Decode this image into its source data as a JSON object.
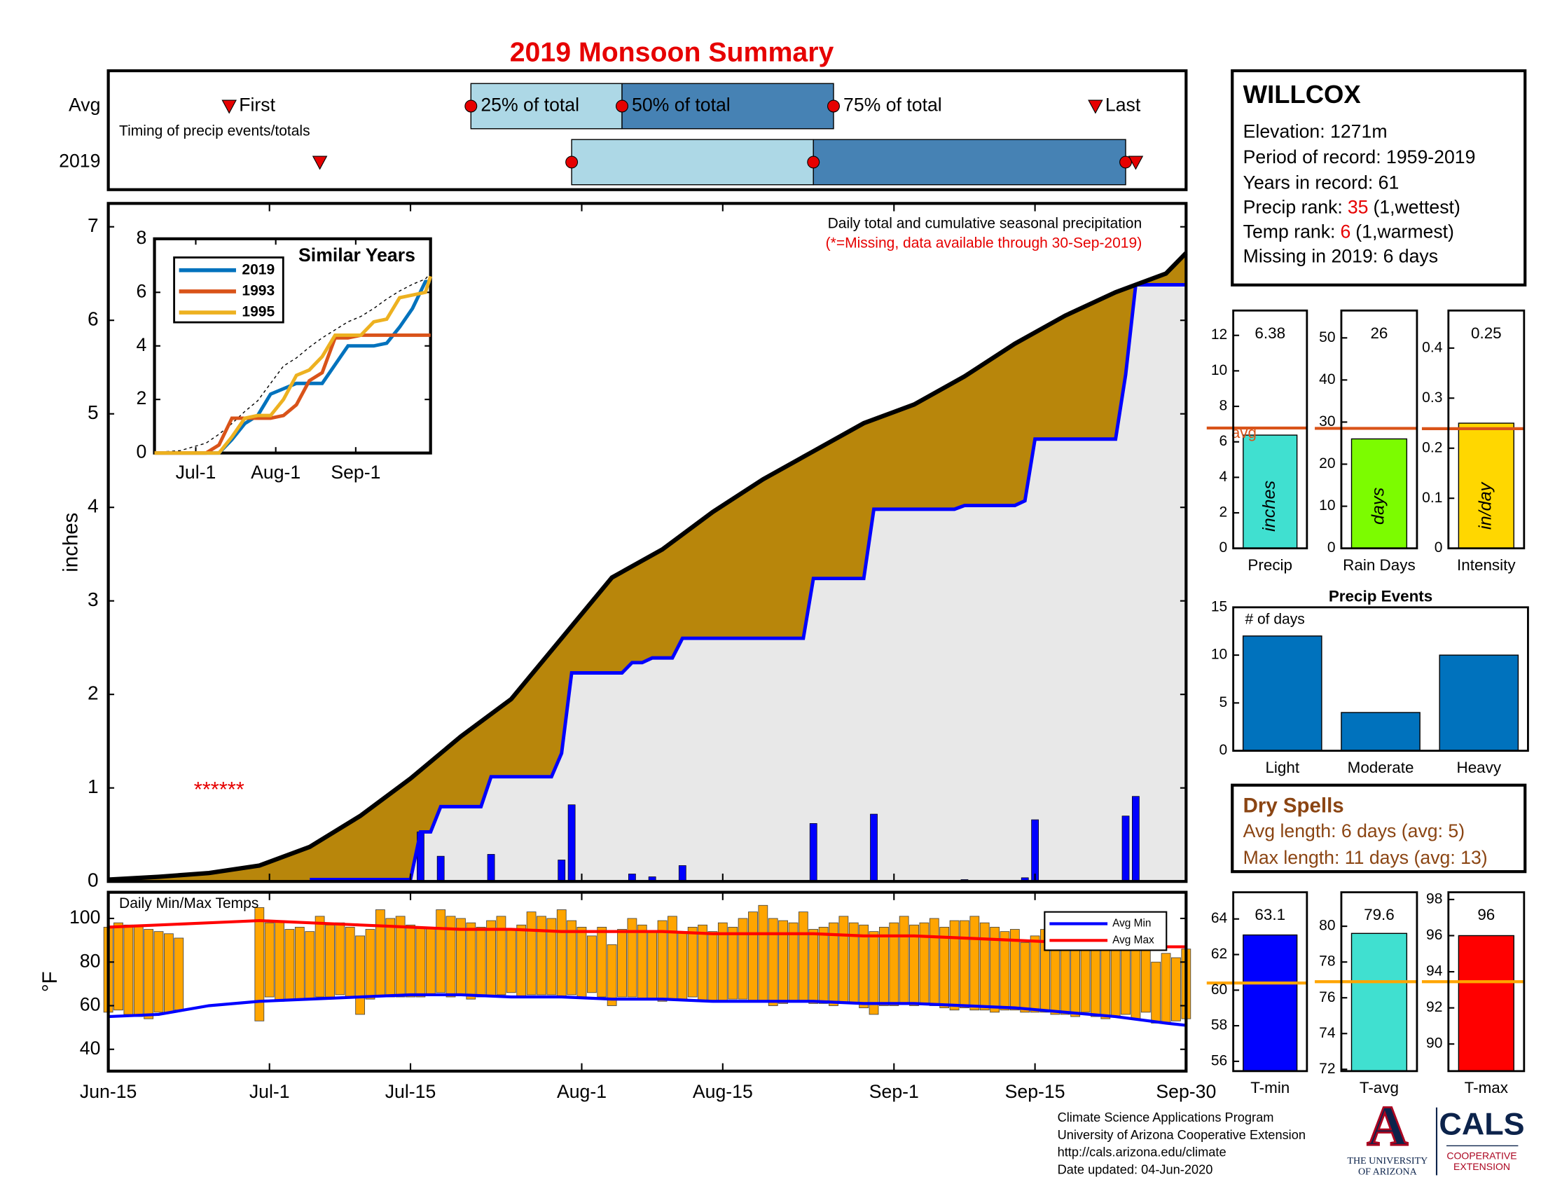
{
  "chart_data": [
    {
      "type": "timeline",
      "title": "2019 Monsoon Summary",
      "note": "Timing of precip events/totals",
      "marker_labels": [
        "First",
        "25% of total",
        "50% of total",
        "75% of total",
        "Last"
      ],
      "xlim": [
        0,
        107
      ],
      "box_colors": [
        "#add8e6",
        "#4682b4"
      ],
      "marker_color": "#e60000",
      "series": [
        {
          "name": "Avg",
          "values": [
            12,
            36,
            51,
            72,
            98
          ]
        },
        {
          "name": "2019",
          "values": [
            21,
            46,
            70,
            101,
            102
          ]
        }
      ]
    },
    {
      "type": "cumulative",
      "annotation": "Daily total and cumulative seasonal precipitation",
      "note": "(*=Missing, data available through 30-Sep-2019)",
      "missing_label": "******",
      "ylabel": "inches",
      "xlim": [
        0,
        107
      ],
      "ylim": [
        0,
        7.25
      ],
      "yticks": [
        0,
        1,
        2,
        3,
        4,
        5,
        6,
        7
      ],
      "average": {
        "color": "#000000",
        "fill": "#b8860b",
        "x": [
          0,
          5,
          10,
          15,
          20,
          25,
          30,
          35,
          40,
          45,
          50,
          55,
          60,
          65,
          70,
          75,
          80,
          85,
          90,
          95,
          100,
          105,
          107
        ],
        "values": [
          0.02,
          0.05,
          0.09,
          0.17,
          0.37,
          0.7,
          1.1,
          1.55,
          1.95,
          2.6,
          3.25,
          3.55,
          3.95,
          4.3,
          4.6,
          4.9,
          5.1,
          5.4,
          5.75,
          6.05,
          6.3,
          6.5,
          6.72
        ]
      },
      "cumulative_2019": {
        "color": "#0000ff",
        "fill": "#e8e8e8",
        "x": [
          20,
          30,
          31,
          32,
          33,
          37,
          38,
          44,
          45,
          46,
          51,
          52,
          53,
          54,
          56,
          57,
          69,
          70,
          75,
          76,
          84,
          85,
          90,
          91,
          92,
          100,
          101,
          102,
          107
        ],
        "values": [
          0.02,
          0.02,
          0.53,
          0.53,
          0.8,
          0.8,
          1.12,
          1.12,
          1.37,
          2.23,
          2.23,
          2.34,
          2.34,
          2.39,
          2.39,
          2.6,
          2.6,
          3.24,
          3.24,
          3.98,
          3.98,
          4.02,
          4.02,
          4.07,
          4.73,
          4.73,
          5.42,
          6.38,
          6.38
        ]
      },
      "daily_2019": {
        "color": "#0000ff",
        "x": [
          31,
          33,
          38,
          45,
          46,
          52,
          54,
          57,
          70,
          76,
          85,
          91,
          92,
          101,
          102
        ],
        "values": [
          0.53,
          0.27,
          0.29,
          0.23,
          0.82,
          0.08,
          0.05,
          0.17,
          0.62,
          0.72,
          0.02,
          0.04,
          0.66,
          0.7,
          0.91
        ]
      }
    },
    {
      "type": "line",
      "title": "Similar Years",
      "xlim": [
        0,
        107
      ],
      "ylim": [
        0,
        8
      ],
      "yticks": [
        0,
        2,
        4,
        6,
        8
      ],
      "xticks": [
        {
          "value": 16,
          "label": "Jul-1"
        },
        {
          "value": 47,
          "label": "Aug-1"
        },
        {
          "value": 78,
          "label": "Sep-1"
        }
      ],
      "x": [
        0,
        10,
        20,
        25,
        30,
        35,
        40,
        45,
        50,
        55,
        60,
        65,
        70,
        75,
        80,
        85,
        90,
        95,
        100,
        105,
        107
      ],
      "series": [
        {
          "color": "#000000",
          "dash": true,
          "values": [
            0.02,
            0.09,
            0.37,
            0.7,
            1.1,
            1.55,
            1.95,
            2.6,
            3.25,
            3.55,
            3.95,
            4.3,
            4.6,
            4.9,
            5.1,
            5.4,
            5.75,
            6.05,
            6.3,
            6.5,
            6.72
          ]
        },
        {
          "name": "2019",
          "color": "#0072bd",
          "values": [
            0,
            0,
            0,
            0,
            0.5,
            1.1,
            1.4,
            2.2,
            2.4,
            2.6,
            2.6,
            2.6,
            3.3,
            4.0,
            4.0,
            4.0,
            4.1,
            4.7,
            5.4,
            6.4,
            6.4
          ]
        },
        {
          "name": "1993",
          "color": "#d95319",
          "values": [
            0,
            0,
            0,
            0.3,
            1.3,
            1.3,
            1.3,
            1.3,
            1.4,
            1.8,
            2.7,
            3.0,
            4.3,
            4.3,
            4.4,
            4.4,
            4.4,
            4.4,
            4.4,
            4.4,
            4.4
          ]
        },
        {
          "name": "1995",
          "color": "#edb120",
          "values": [
            0,
            0,
            0,
            0,
            0.6,
            1.3,
            1.4,
            1.4,
            2.0,
            2.9,
            3.1,
            3.6,
            4.4,
            4.4,
            4.4,
            4.9,
            5.0,
            5.8,
            5.9,
            6.0,
            6.6
          ]
        }
      ]
    },
    {
      "type": "range",
      "label": "Daily Min/Max Temps",
      "ylabel": "°F",
      "xlim": [
        0,
        107
      ],
      "ylim": [
        30,
        112
      ],
      "yticks": [
        40,
        60,
        80,
        100
      ],
      "xticks": [
        {
          "value": 0,
          "label": "Jun-15"
        },
        {
          "value": 16,
          "label": "Jul-1"
        },
        {
          "value": 30,
          "label": "Jul-15"
        },
        {
          "value": 47,
          "label": "Aug-1"
        },
        {
          "value": 61,
          "label": "Aug-15"
        },
        {
          "value": 78,
          "label": "Sep-1"
        },
        {
          "value": 92,
          "label": "Sep-15"
        },
        {
          "value": 107,
          "label": "Sep-30"
        }
      ],
      "bar_color": "#ffa500",
      "x": [
        0,
        1,
        2,
        3,
        4,
        5,
        6,
        7,
        8,
        9,
        10,
        11,
        12,
        13,
        14,
        15,
        16,
        17,
        18,
        19,
        20,
        21,
        22,
        23,
        24,
        25,
        26,
        27,
        28,
        29,
        30,
        31,
        32,
        33,
        34,
        35,
        36,
        37,
        38,
        39,
        40,
        41,
        42,
        43,
        44,
        45,
        46,
        47,
        48,
        49,
        50,
        51,
        52,
        53,
        54,
        55,
        56,
        57,
        58,
        59,
        60,
        61,
        62,
        63,
        64,
        65,
        66,
        67,
        68,
        69,
        70,
        71,
        72,
        73,
        74,
        75,
        76,
        77,
        78,
        79,
        80,
        81,
        82,
        83,
        84,
        85,
        86,
        87,
        88,
        89,
        90,
        91,
        92,
        93,
        94,
        95,
        96,
        97,
        98,
        99,
        100,
        101,
        102,
        103,
        104,
        105,
        106,
        107
      ],
      "highs": [
        96,
        98,
        97,
        97,
        95,
        94,
        93,
        91,
        null,
        null,
        null,
        null,
        null,
        null,
        null,
        105,
        98,
        99,
        95,
        96,
        94,
        101,
        97,
        98,
        96,
        92,
        95,
        104,
        100,
        101,
        97,
        96,
        96,
        104,
        101,
        100,
        98,
        96,
        99,
        101,
        95,
        97,
        103,
        101,
        100,
        104,
        99,
        96,
        92,
        96,
        88,
        95,
        100,
        97,
        94,
        99,
        101,
        94,
        96,
        97,
        94,
        98,
        96,
        100,
        103,
        106,
        100,
        99,
        98,
        103,
        95,
        96,
        98,
        101,
        98,
        97,
        94,
        96,
        98,
        101,
        97,
        98,
        100,
        96,
        99,
        99,
        101,
        98,
        96,
        94,
        95,
        89,
        92,
        95,
        97,
        90,
        88,
        96,
        93,
        91,
        95,
        96,
        90,
        89,
        80,
        84,
        82,
        86
      ],
      "lows": [
        57,
        58,
        56,
        55,
        54,
        57,
        57,
        58,
        null,
        null,
        null,
        null,
        null,
        null,
        null,
        53,
        64,
        62,
        63,
        63,
        63,
        64,
        64,
        65,
        64,
        56,
        63,
        64,
        64,
        64,
        64,
        64,
        65,
        66,
        64,
        65,
        63,
        64,
        64,
        65,
        66,
        64,
        65,
        65,
        65,
        64,
        65,
        64,
        66,
        64,
        60,
        64,
        64,
        63,
        63,
        62,
        63,
        63,
        64,
        62,
        62,
        62,
        63,
        63,
        62,
        62,
        60,
        61,
        62,
        62,
        61,
        61,
        60,
        61,
        61,
        59,
        56,
        60,
        60,
        61,
        60,
        61,
        60,
        59,
        58,
        59,
        58,
        58,
        57,
        58,
        58,
        57,
        57,
        57,
        56,
        56,
        55,
        57,
        55,
        54,
        55,
        56,
        54,
        57,
        52,
        52,
        53,
        54
      ],
      "series": [
        {
          "name": "Avg Min",
          "color": "#0000ff",
          "x": [
            0,
            5,
            10,
            15,
            20,
            25,
            30,
            35,
            40,
            45,
            50,
            55,
            60,
            65,
            70,
            75,
            80,
            85,
            90,
            95,
            100,
            105,
            107
          ],
          "values": [
            55,
            56,
            60,
            62,
            63,
            64,
            65,
            65,
            64,
            64,
            63,
            63,
            62,
            62,
            62,
            61,
            61,
            60,
            59,
            57,
            55,
            52,
            51
          ]
        },
        {
          "name": "Avg Max",
          "color": "#ff0000",
          "x": [
            0,
            5,
            10,
            15,
            20,
            25,
            30,
            35,
            40,
            45,
            50,
            55,
            60,
            65,
            70,
            75,
            80,
            85,
            90,
            95,
            100,
            105,
            107
          ],
          "values": [
            96,
            97,
            98,
            99,
            98,
            97,
            96,
            95,
            95,
            94,
            94,
            94,
            93,
            93,
            93,
            92,
            92,
            91,
            90,
            89,
            88,
            87,
            87
          ]
        }
      ]
    },
    {
      "type": "bar",
      "categories": [
        "Precip"
      ],
      "values": [
        6.38
      ],
      "data_labels": true,
      "bar_label": "inches",
      "avg": 6.78,
      "avg_label": "avg",
      "color": "#40e0d0",
      "avg_color": "#d95319",
      "ylim": [
        0,
        13.4
      ],
      "yticks": [
        0,
        2,
        4,
        6,
        8,
        10,
        12
      ]
    },
    {
      "type": "bar",
      "categories": [
        "Rain Days"
      ],
      "values": [
        26
      ],
      "data_labels": true,
      "bar_label": "days",
      "avg": 28.5,
      "color": "#7cfc00",
      "avg_color": "#d95319",
      "ylim": [
        0,
        56.5
      ],
      "yticks": [
        0,
        10,
        20,
        30,
        40,
        50
      ]
    },
    {
      "type": "bar",
      "categories": [
        "Intensity"
      ],
      "values": [
        0.25
      ],
      "data_labels": true,
      "bar_label": "in/day",
      "avg": 0.239,
      "color": "#ffd700",
      "avg_color": "#d95319",
      "ylim": [
        0,
        0.475
      ],
      "yticks": [
        0,
        0.1,
        0.2,
        0.3,
        0.4
      ]
    },
    {
      "type": "bar",
      "title": "Precip Events",
      "annotation": "# of days",
      "categories": [
        "Light",
        "Moderate",
        "Heavy"
      ],
      "values": [
        12,
        4,
        10
      ],
      "color": "#0072bd",
      "ylim": [
        0,
        15
      ],
      "yticks": [
        0,
        5,
        10,
        15
      ]
    },
    {
      "type": "bar",
      "categories": [
        "T-min"
      ],
      "values": [
        63.1
      ],
      "data_labels": true,
      "avg": 60.4,
      "color": "#0000ff",
      "avg_color": "#ffa500",
      "ylim": [
        55.45,
        65.5
      ],
      "yticks": [
        56,
        58,
        60,
        62,
        64
      ]
    },
    {
      "type": "bar",
      "categories": [
        "T-avg"
      ],
      "values": [
        79.6
      ],
      "data_labels": true,
      "avg": 76.9,
      "color": "#40e0d0",
      "avg_color": "#ffa500",
      "ylim": [
        71.9,
        81.9
      ],
      "yticks": [
        72,
        74,
        76,
        78,
        80
      ]
    },
    {
      "type": "bar",
      "categories": [
        "T-max"
      ],
      "values": [
        96
      ],
      "data_labels": true,
      "avg": 93.45,
      "color": "#ff0000",
      "avg_color": "#ffa500",
      "ylim": [
        88.5,
        98.4
      ],
      "yticks": [
        90,
        92,
        94,
        96,
        98
      ]
    }
  ],
  "station": {
    "name": "WILLCOX",
    "lines": [
      "Elevation: 1271m",
      "Period of record: 1959-2019",
      "Years in record: 61"
    ],
    "ranks": [
      {
        "label": "Precip rank:",
        "value": 35,
        "note": "(1,wettest)"
      },
      {
        "label": "Temp rank:",
        "value": 6,
        "note": "(1,warmest)"
      }
    ],
    "missing": "Missing in 2019: 6 days"
  },
  "dry_spells": {
    "title": "Dry Spells",
    "lines": [
      "Avg length: 6 days (avg: 5)",
      "Max length: 11 days (avg: 13)"
    ]
  },
  "footer": [
    "Climate Science Applications Program",
    "University of Arizona Cooperative Extension",
    "http://cals.arizona.edu/climate",
    " Date updated: 04-Jun-2020"
  ],
  "logo": {
    "letter": "A",
    "university": [
      "THE UNIVERSITY",
      "OF ARIZONA"
    ],
    "cals": "CALS",
    "extension": [
      "COOPERATIVE",
      "EXTENSION"
    ]
  }
}
